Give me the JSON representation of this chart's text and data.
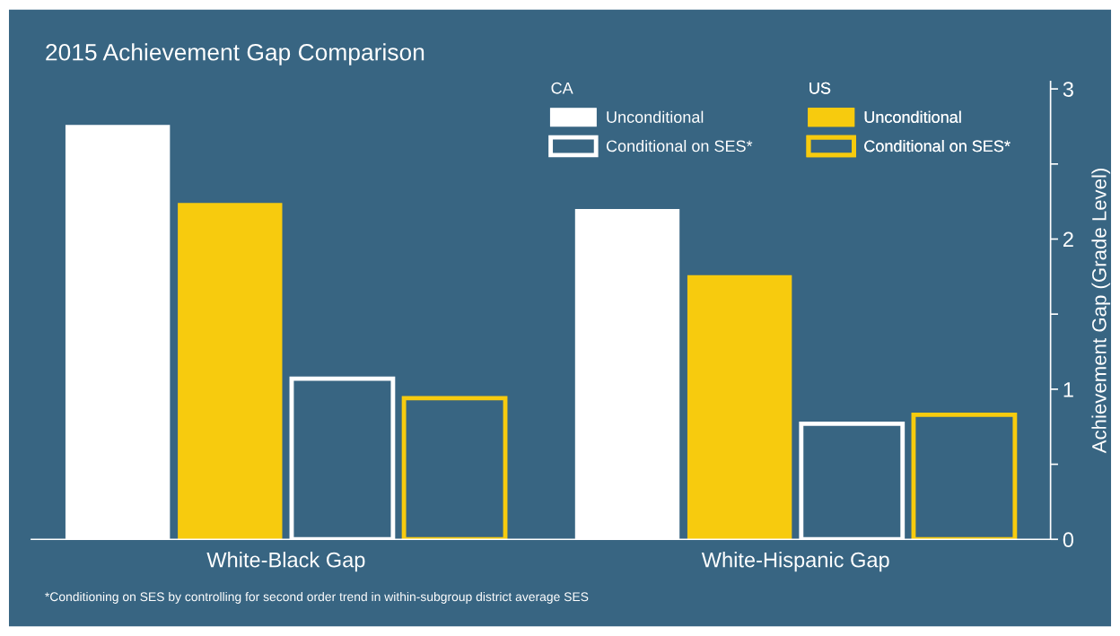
{
  "chart_data": {
    "type": "bar",
    "title": "2015 Achievement Gap Comparison",
    "ylabel": "Achievement Gap (Grade Level)",
    "categories": [
      "White-Black Gap",
      "White-Hispanic Gap"
    ],
    "series": [
      {
        "name": "Unconditional",
        "color": "#ffffff",
        "values": [
          2.76,
          2.2
        ]
      },
      {
        "name": "Unconditional",
        "color": "#f7cb0e",
        "values": [
          2.24,
          1.76
        ]
      },
      {
        "name": "Conditional on SES*",
        "color": "#ffffff",
        "line_style": "solid",
        "values": [
          1.07,
          0.77
        ]
      },
      {
        "name": "Conditional on SES*",
        "color": "#f7cb0e",
        "line_style": "solid",
        "values": [
          0.94,
          0.83
        ]
      }
    ],
    "ylim": [
      0,
      3.05
    ],
    "yticks": [
      0,
      {
        "value": 0.5,
        "label": null
      },
      1,
      {
        "value": 1.5,
        "label": null
      },
      2,
      {
        "value": 2.5,
        "label": null
      },
      3
    ],
    "grid": false,
    "legend": "top right",
    "annotations": [
      "CA",
      "US",
      "*Conditioning on SES by controlling for second order trend in within-subgroup district average SES"
    ]
  }
}
